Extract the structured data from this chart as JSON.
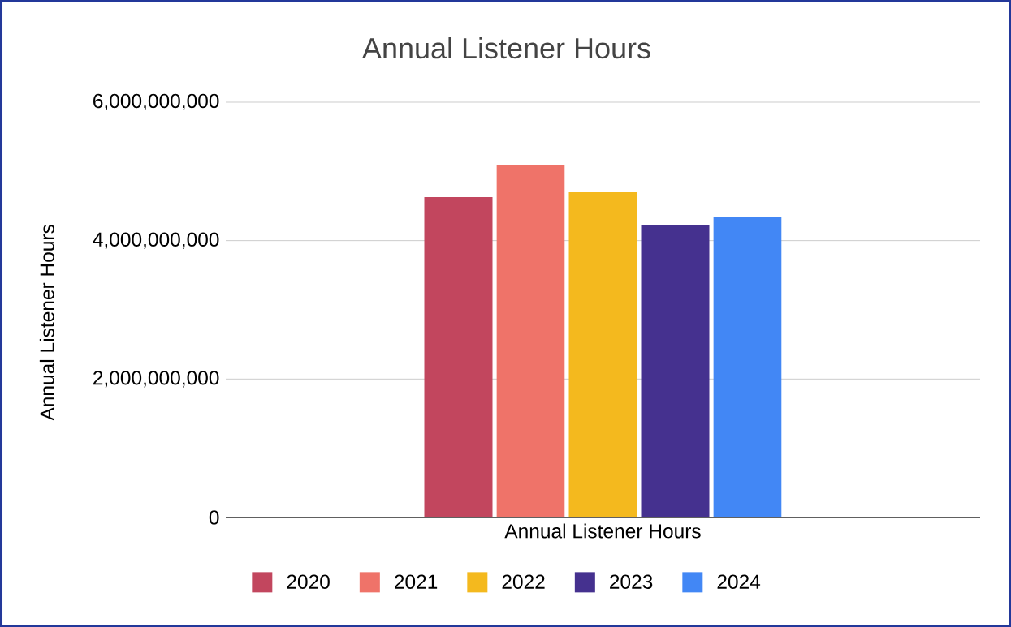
{
  "chart_data": {
    "type": "bar",
    "title": "Annual Listener Hours",
    "xlabel": "Annual Listener Hours",
    "ylabel": "Annual Listener Hours",
    "categories": [
      null
    ],
    "series": [
      {
        "name": "2020",
        "color": "#c2465e",
        "values": [
          4630000000
        ]
      },
      {
        "name": "2021",
        "color": "#ef7369",
        "values": [
          5090000000
        ]
      },
      {
        "name": "2022",
        "color": "#f4b91e",
        "values": [
          4700000000
        ]
      },
      {
        "name": "2023",
        "color": "#45318f",
        "values": [
          4220000000
        ]
      },
      {
        "name": "2024",
        "color": "#4287f5",
        "values": [
          4340000000
        ]
      }
    ],
    "ylim": [
      0,
      6000000000
    ],
    "yticks": [
      0,
      {
        "value": 2000000000,
        "label": "2,000,000,000"
      },
      {
        "value": 4000000000,
        "label": "4,000,000,000"
      },
      {
        "value": 6000000000,
        "label": "6,000,000,000"
      }
    ],
    "grid": "y",
    "legend": "bottom"
  }
}
